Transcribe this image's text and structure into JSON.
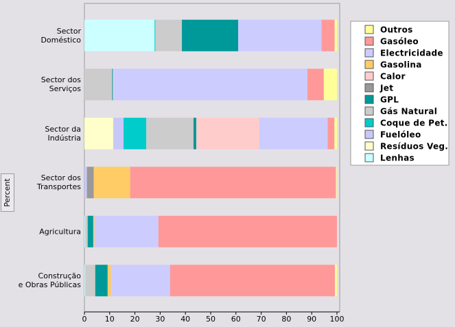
{
  "chart_data": {
    "type": "stacked-barh",
    "y_label": "Percent",
    "categories": [
      "Sector\nDoméstico",
      "Sector dos\nServiços",
      "Sector da\nIndústria",
      "Sector dos\nTransportes",
      "Agricultura",
      "Construção\ne Obras Públicas"
    ],
    "series": [
      {
        "name": "Lenhas",
        "color": "#ccffff",
        "values": [
          27.8,
          0,
          0,
          0,
          0.3,
          0.3
        ]
      },
      {
        "name": "Resíduos Veg.",
        "color": "#ffffcc",
        "values": [
          0,
          0,
          11.4,
          0,
          0,
          0
        ]
      },
      {
        "name": "Fuelóleo",
        "color": "#c8c8f8",
        "values": [
          0,
          0,
          4.1,
          1,
          0,
          0
        ]
      },
      {
        "name": "Coque de Pet.",
        "color": "#00cccc",
        "values": [
          0.3,
          0,
          9,
          0,
          0,
          0
        ]
      },
      {
        "name": "Gás Natural",
        "color": "#cccccc",
        "values": [
          10.5,
          11,
          18.7,
          0,
          1,
          4
        ]
      },
      {
        "name": "GPL",
        "color": "#009999",
        "values": [
          22.3,
          0.3,
          1.1,
          0,
          2.2,
          4.9
        ]
      },
      {
        "name": "Jet",
        "color": "#999999",
        "values": [
          0,
          0,
          0,
          2.7,
          0,
          0
        ]
      },
      {
        "name": "Calor",
        "color": "#ffcccc",
        "values": [
          0,
          0.4,
          25,
          0,
          0,
          0
        ]
      },
      {
        "name": "Gasolina",
        "color": "#ffcc66",
        "values": [
          0,
          0,
          0,
          14.4,
          0.5,
          1.3
        ]
      },
      {
        "name": "Electricidade",
        "color": "#ccccff",
        "values": [
          33,
          76.6,
          27,
          0,
          25.3,
          23.4
        ]
      },
      {
        "name": "Gasóleo",
        "color": "#ff9999",
        "values": [
          5.2,
          6.5,
          2.7,
          81.5,
          70.7,
          65.3
        ]
      },
      {
        "name": "Outros",
        "color": "#ffff99",
        "values": [
          0.9,
          5.2,
          1,
          0.3,
          0,
          0.8
        ]
      }
    ],
    "xlim": [
      0,
      100
    ],
    "xticks": [
      0,
      10,
      20,
      30,
      40,
      50,
      60,
      70,
      80,
      90,
      100
    ]
  }
}
